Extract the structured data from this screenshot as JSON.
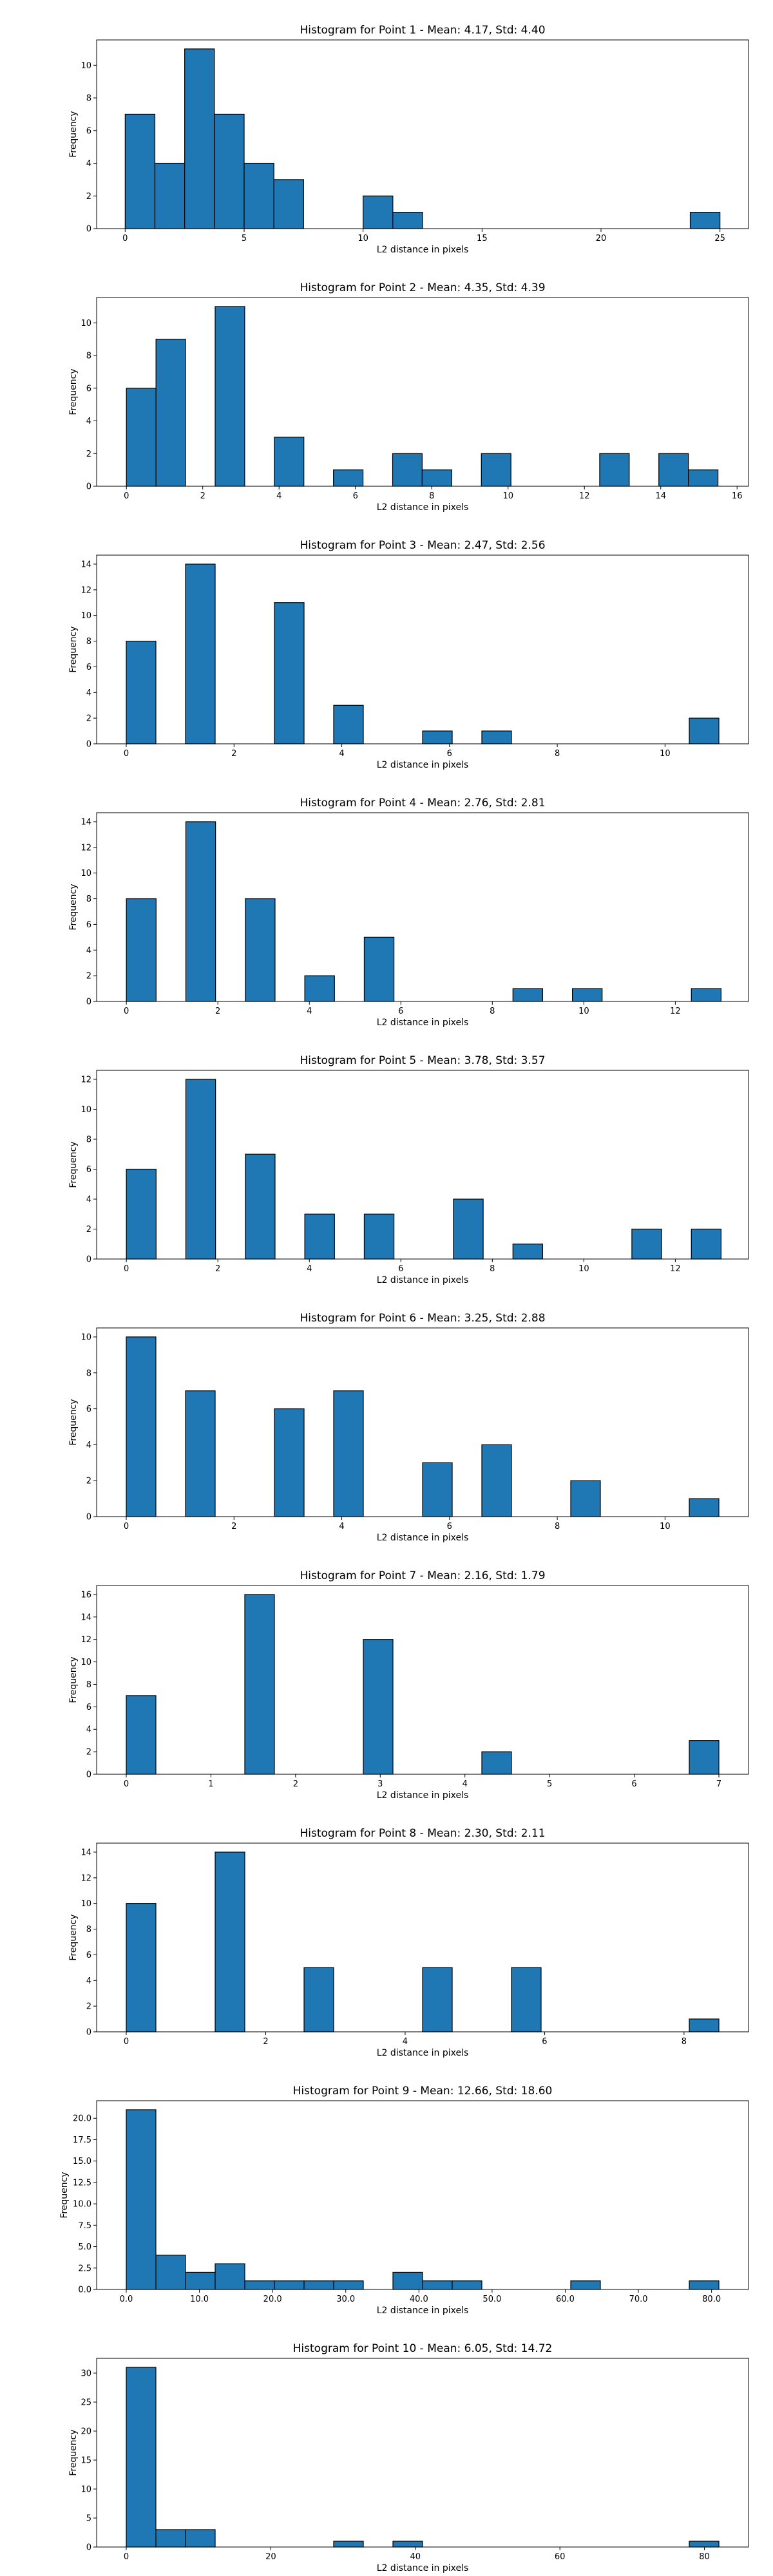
{
  "chart_data": [
    {
      "type": "bar",
      "title": "Histogram for Point 1 - Mean: 4.17, Std: 4.40",
      "xlabel": "L2 distance in pixels",
      "ylabel": "Frequency",
      "xlim": [
        -1.2,
        26.2
      ],
      "ylim": [
        0,
        11.55
      ],
      "xticks": [
        0,
        5,
        10,
        15,
        20,
        25
      ],
      "yticks": [
        0,
        2,
        4,
        6,
        8,
        10
      ],
      "tick_format": "int",
      "bin_edges": [
        0,
        1.25,
        2.5,
        3.75,
        5.0,
        6.25,
        7.5,
        8.75,
        10.0,
        11.25,
        12.5,
        13.75,
        15.0,
        16.25,
        17.5,
        18.75,
        20.0,
        21.25,
        22.5,
        23.75,
        25.0
      ],
      "counts": [
        7,
        4,
        11,
        7,
        4,
        3,
        0,
        0,
        2,
        1,
        0,
        0,
        0,
        0,
        0,
        0,
        0,
        0,
        0,
        1
      ],
      "grid": false,
      "bar_color": "#1f77b4"
    },
    {
      "type": "bar",
      "title": "Histogram for Point 2 - Mean: 4.35, Std: 4.39",
      "xlabel": "L2 distance in pixels",
      "ylabel": "Frequency",
      "xlim": [
        -0.78,
        16.3
      ],
      "ylim": [
        0,
        11.55
      ],
      "xticks": [
        0,
        2,
        4,
        6,
        8,
        10,
        12,
        14,
        16
      ],
      "yticks": [
        0,
        2,
        4,
        6,
        8,
        10
      ],
      "tick_format": "int",
      "bin_edges": [
        0,
        0.775,
        1.55,
        2.325,
        3.1,
        3.875,
        4.65,
        5.425,
        6.2,
        6.975,
        7.75,
        8.525,
        9.3,
        10.075,
        10.85,
        11.625,
        12.4,
        13.175,
        13.95,
        14.725,
        15.5
      ],
      "counts": [
        6,
        9,
        0,
        11,
        0,
        3,
        0,
        1,
        0,
        2,
        1,
        0,
        2,
        0,
        0,
        0,
        2,
        0,
        2,
        1
      ],
      "grid": false,
      "bar_color": "#1f77b4"
    },
    {
      "type": "bar",
      "title": "Histogram for Point 3 - Mean: 2.47, Std: 2.56",
      "xlabel": "L2 distance in pixels",
      "ylabel": "Frequency",
      "xlim": [
        -0.55,
        11.55
      ],
      "ylim": [
        0,
        14.7
      ],
      "xticks": [
        0,
        2,
        4,
        6,
        8,
        10
      ],
      "yticks": [
        0,
        2,
        4,
        6,
        8,
        10,
        12,
        14
      ],
      "tick_format": "int",
      "bin_edges": [
        0,
        0.55,
        1.1,
        1.65,
        2.2,
        2.75,
        3.3,
        3.85,
        4.4,
        4.95,
        5.5,
        6.05,
        6.6,
        7.15,
        7.7,
        8.25,
        8.8,
        9.35,
        9.9,
        10.45,
        11.0
      ],
      "counts": [
        8,
        0,
        14,
        0,
        0,
        11,
        0,
        3,
        0,
        0,
        1,
        0,
        1,
        0,
        0,
        0,
        0,
        0,
        0,
        2
      ],
      "grid": false,
      "bar_color": "#1f77b4"
    },
    {
      "type": "bar",
      "title": "Histogram for Point 4 - Mean: 2.76, Std: 2.81",
      "xlabel": "L2 distance in pixels",
      "ylabel": "Frequency",
      "xlim": [
        -0.65,
        13.6
      ],
      "ylim": [
        0,
        14.7
      ],
      "xticks": [
        0,
        2,
        4,
        6,
        8,
        10,
        12
      ],
      "yticks": [
        0,
        2,
        4,
        6,
        8,
        10,
        12,
        14
      ],
      "tick_format": "int",
      "bin_edges": [
        0,
        0.65,
        1.3,
        1.95,
        2.6,
        3.25,
        3.9,
        4.55,
        5.2,
        5.85,
        6.5,
        7.15,
        7.8,
        8.45,
        9.1,
        9.75,
        10.4,
        11.05,
        11.7,
        12.35,
        13.0
      ],
      "counts": [
        8,
        0,
        14,
        0,
        8,
        0,
        2,
        0,
        5,
        0,
        0,
        0,
        0,
        1,
        0,
        1,
        0,
        0,
        0,
        1
      ],
      "grid": false,
      "bar_color": "#1f77b4"
    },
    {
      "type": "bar",
      "title": "Histogram for Point 5 - Mean: 3.78, Std: 3.57",
      "xlabel": "L2 distance in pixels",
      "ylabel": "Frequency",
      "xlim": [
        -0.65,
        13.6
      ],
      "ylim": [
        0,
        12.6
      ],
      "xticks": [
        0,
        2,
        4,
        6,
        8,
        10,
        12
      ],
      "yticks": [
        0,
        2,
        4,
        6,
        8,
        10,
        12
      ],
      "tick_format": "int",
      "bin_edges": [
        0,
        0.65,
        1.3,
        1.95,
        2.6,
        3.25,
        3.9,
        4.55,
        5.2,
        5.85,
        6.5,
        7.15,
        7.8,
        8.45,
        9.1,
        9.75,
        10.4,
        11.05,
        11.7,
        12.35,
        13.0
      ],
      "counts": [
        6,
        0,
        12,
        0,
        7,
        0,
        3,
        0,
        3,
        0,
        0,
        4,
        0,
        1,
        0,
        0,
        0,
        2,
        0,
        2
      ],
      "grid": false,
      "bar_color": "#1f77b4"
    },
    {
      "type": "bar",
      "title": "Histogram for Point 6 - Mean: 3.25, Std: 2.88",
      "xlabel": "L2 distance in pixels",
      "ylabel": "Frequency",
      "xlim": [
        -0.55,
        11.55
      ],
      "ylim": [
        0,
        10.5
      ],
      "xticks": [
        0,
        2,
        4,
        6,
        8,
        10
      ],
      "yticks": [
        0,
        2,
        4,
        6,
        8,
        10
      ],
      "tick_format": "int",
      "bin_edges": [
        0,
        0.55,
        1.1,
        1.65,
        2.2,
        2.75,
        3.3,
        3.85,
        4.4,
        4.95,
        5.5,
        6.05,
        6.6,
        7.15,
        7.7,
        8.25,
        8.8,
        9.35,
        9.9,
        10.45,
        11.0
      ],
      "counts": [
        10,
        0,
        7,
        0,
        0,
        6,
        0,
        7,
        0,
        0,
        3,
        0,
        4,
        0,
        0,
        2,
        0,
        0,
        0,
        1
      ],
      "grid": false,
      "bar_color": "#1f77b4"
    },
    {
      "type": "bar",
      "title": "Histogram for Point 7 - Mean: 2.16, Std: 1.79",
      "xlabel": "L2 distance in pixels",
      "ylabel": "Frequency",
      "xlim": [
        -0.35,
        7.35
      ],
      "ylim": [
        0,
        16.8
      ],
      "xticks": [
        0,
        1,
        2,
        3,
        4,
        5,
        6,
        7
      ],
      "yticks": [
        0,
        2,
        4,
        6,
        8,
        10,
        12,
        14,
        16
      ],
      "tick_format": "int",
      "bin_edges": [
        0,
        0.35,
        0.7,
        1.05,
        1.4,
        1.75,
        2.1,
        2.45,
        2.8,
        3.15,
        3.5,
        3.85,
        4.2,
        4.55,
        4.9,
        5.25,
        5.6,
        5.95,
        6.3,
        6.65,
        7.0
      ],
      "counts": [
        7,
        0,
        0,
        0,
        16,
        0,
        0,
        0,
        12,
        0,
        0,
        0,
        2,
        0,
        0,
        0,
        0,
        0,
        0,
        3
      ],
      "grid": false,
      "bar_color": "#1f77b4"
    },
    {
      "type": "bar",
      "title": "Histogram for Point 8 - Mean: 2.30, Std: 2.11",
      "xlabel": "L2 distance in pixels",
      "ylabel": "Frequency",
      "xlim": [
        -0.425,
        8.925
      ],
      "ylim": [
        0,
        14.7
      ],
      "xticks": [
        0,
        2,
        4,
        6,
        8
      ],
      "yticks": [
        0,
        2,
        4,
        6,
        8,
        10,
        12,
        14
      ],
      "tick_format": "int",
      "bin_edges": [
        0,
        0.425,
        0.85,
        1.275,
        1.7,
        2.125,
        2.55,
        2.975,
        3.4,
        3.825,
        4.25,
        4.675,
        5.1,
        5.525,
        5.95,
        6.375,
        6.8,
        7.225,
        7.65,
        8.075,
        8.5
      ],
      "counts": [
        10,
        0,
        0,
        14,
        0,
        0,
        5,
        0,
        0,
        0,
        5,
        0,
        0,
        5,
        0,
        0,
        0,
        0,
        0,
        1
      ],
      "grid": false,
      "bar_color": "#1f77b4"
    },
    {
      "type": "bar",
      "title": "Histogram for Point 9 - Mean: 12.66, Std: 18.60",
      "xlabel": "L2 distance in pixels",
      "ylabel": "Frequency",
      "xlim": [
        -4.05,
        85.05
      ],
      "ylim": [
        0,
        22.05
      ],
      "xticks": [
        0,
        10,
        20,
        30,
        40,
        50,
        60,
        70,
        80
      ],
      "yticks": [
        0,
        2.5,
        5.0,
        7.5,
        10.0,
        12.5,
        15.0,
        17.5,
        20.0
      ],
      "tick_format": "fixed1",
      "bin_edges": [
        0,
        4.05,
        8.1,
        12.15,
        16.2,
        20.25,
        24.3,
        28.35,
        32.4,
        36.45,
        40.5,
        44.55,
        48.6,
        52.65,
        56.7,
        60.75,
        64.8,
        68.85,
        72.9,
        76.95,
        81.0
      ],
      "counts": [
        21,
        4,
        2,
        3,
        1,
        1,
        1,
        1,
        0,
        2,
        1,
        1,
        0,
        0,
        0,
        1,
        0,
        0,
        0,
        1
      ],
      "grid": false,
      "bar_color": "#1f77b4"
    },
    {
      "type": "bar",
      "title": "Histogram for Point 10 - Mean: 6.05, Std: 14.72",
      "xlabel": "L2 distance in pixels",
      "ylabel": "Frequency",
      "xlim": [
        -4.1,
        86.1
      ],
      "ylim": [
        0,
        32.55
      ],
      "xticks": [
        0,
        20,
        40,
        60,
        80
      ],
      "yticks": [
        0,
        5,
        10,
        15,
        20,
        25,
        30
      ],
      "tick_format": "int",
      "bin_edges": [
        0,
        4.1,
        8.2,
        12.3,
        16.4,
        20.5,
        24.6,
        28.7,
        32.8,
        36.9,
        41.0,
        45.1,
        49.2,
        53.3,
        57.4,
        61.5,
        65.6,
        69.7,
        73.8,
        77.9,
        82.0
      ],
      "counts": [
        31,
        3,
        3,
        0,
        0,
        0,
        0,
        1,
        0,
        1,
        0,
        0,
        0,
        0,
        0,
        0,
        0,
        0,
        0,
        1
      ],
      "grid": false,
      "bar_color": "#1f77b4"
    }
  ]
}
